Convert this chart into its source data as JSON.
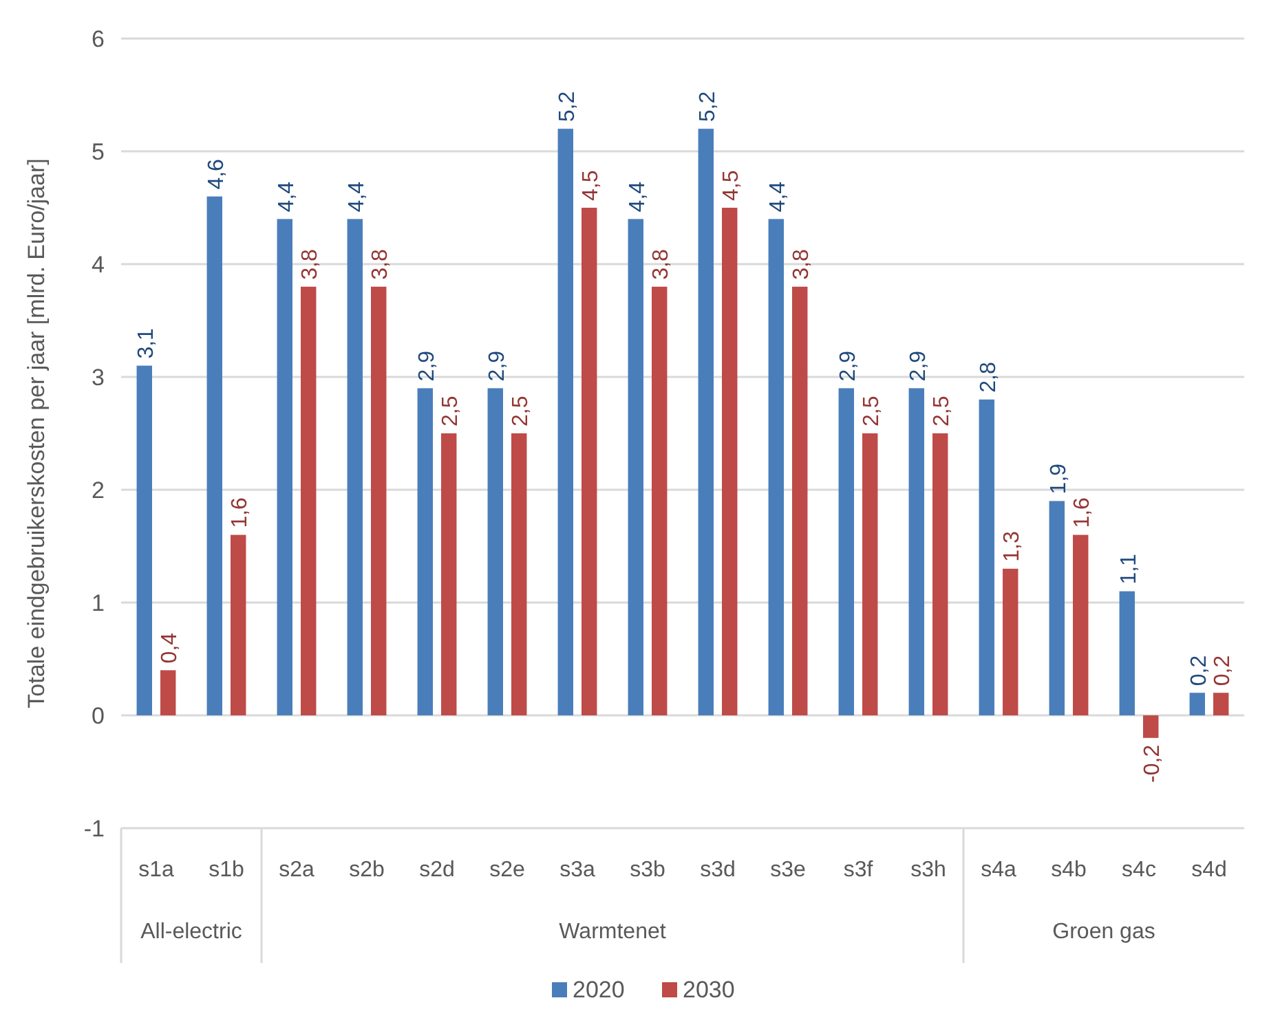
{
  "chart_data": {
    "type": "bar",
    "ylabel": "Totale eindgebruikerskosten per jaar [mlrd. Euro/jaar]",
    "categories": [
      "s1a",
      "s1b",
      "s2a",
      "s2b",
      "s2d",
      "s2e",
      "s3a",
      "s3b",
      "s3d",
      "s3e",
      "s3f",
      "s3h",
      "s4a",
      "s4b",
      "s4c",
      "s4d"
    ],
    "series": [
      {
        "name": "2020",
        "color": "#4a7ebb",
        "values": [
          3.1,
          4.6,
          4.4,
          4.4,
          2.9,
          2.9,
          5.2,
          4.4,
          5.2,
          4.4,
          2.9,
          2.9,
          2.8,
          1.9,
          1.1,
          0.2
        ],
        "value_labels": [
          "3,1",
          "4,6",
          "4,4",
          "4,4",
          "2,9",
          "2,9",
          "5,2",
          "4,4",
          "5,2",
          "4,4",
          "2,9",
          "2,9",
          "2,8",
          "1,9",
          "1,1",
          "0,2"
        ]
      },
      {
        "name": "2030",
        "color": "#be4b48",
        "values": [
          0.4,
          1.6,
          3.8,
          3.8,
          2.5,
          2.5,
          4.5,
          3.8,
          4.5,
          3.8,
          2.5,
          2.5,
          1.3,
          1.6,
          -0.2,
          0.2
        ],
        "value_labels": [
          "0,4",
          "1,6",
          "3,8",
          "3,8",
          "2,5",
          "2,5",
          "4,5",
          "3,8",
          "4,5",
          "3,8",
          "2,5",
          "2,5",
          "1,3",
          "1,6",
          "-0,2",
          "0,2"
        ]
      }
    ],
    "annotations": [
      "All-electric",
      "Warmtenet",
      "Groen gas"
    ],
    "ylim": [
      -1,
      6
    ],
    "yticks": [
      -1,
      0,
      1,
      2,
      3,
      4,
      5,
      6
    ],
    "grid": "y",
    "legend": "bottom"
  }
}
